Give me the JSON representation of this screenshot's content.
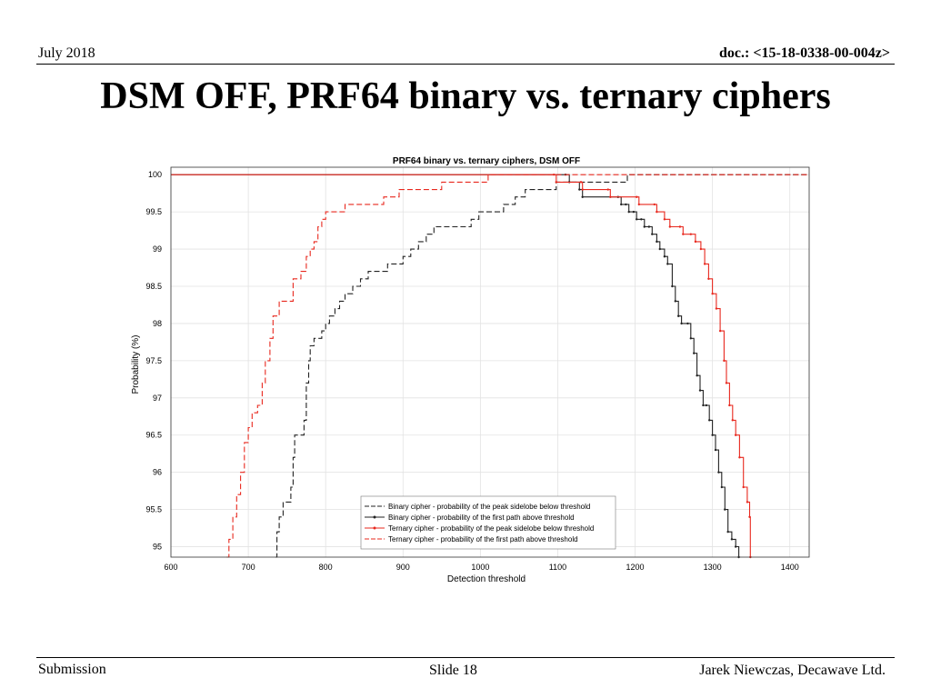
{
  "header": {
    "date": "July 2018",
    "doc": "doc.: <15-18-0338-00-004z>"
  },
  "slide_title": "DSM OFF, PRF64 binary vs. ternary ciphers",
  "footer": {
    "left": "Submission",
    "center": "Slide 18",
    "right": "Jarek Niewczas,  Decawave Ltd."
  },
  "colors": {
    "binary": "#222222",
    "ternary": "#e8281e",
    "grid": "#e2e2e2",
    "axis": "#333333"
  },
  "chart_data": {
    "type": "line",
    "title": "PRF64 binary vs. ternary ciphers, DSM OFF",
    "xlabel": "Detection threshold",
    "ylabel": "Probability (%)",
    "xlim": [
      600,
      1425
    ],
    "ylim": [
      94.86,
      100.1
    ],
    "xticks": [
      600,
      700,
      800,
      900,
      1000,
      1100,
      1200,
      1300,
      1400
    ],
    "yticks": [
      95,
      95.5,
      96,
      96.5,
      97,
      97.5,
      98,
      98.5,
      99,
      99.5,
      100
    ],
    "grid": true,
    "legend_position": "bottom-center",
    "series": [
      {
        "name": "Binary cipher - probability of the peak sidelobe below threshold",
        "color": "#222222",
        "dash": true,
        "markers": false,
        "points": [
          [
            735,
            94.86
          ],
          [
            737,
            95.2
          ],
          [
            740,
            95.4
          ],
          [
            745,
            95.6
          ],
          [
            752,
            95.6
          ],
          [
            755,
            95.8
          ],
          [
            758,
            96.2
          ],
          [
            760,
            96.5
          ],
          [
            768,
            96.5
          ],
          [
            772,
            96.7
          ],
          [
            775,
            97.2
          ],
          [
            778,
            97.5
          ],
          [
            780,
            97.7
          ],
          [
            785,
            97.8
          ],
          [
            792,
            97.8
          ],
          [
            795,
            97.9
          ],
          [
            800,
            98.0
          ],
          [
            805,
            98.1
          ],
          [
            812,
            98.2
          ],
          [
            818,
            98.3
          ],
          [
            825,
            98.4
          ],
          [
            835,
            98.5
          ],
          [
            845,
            98.6
          ],
          [
            855,
            98.7
          ],
          [
            870,
            98.7
          ],
          [
            880,
            98.8
          ],
          [
            895,
            98.8
          ],
          [
            900,
            98.9
          ],
          [
            910,
            99.0
          ],
          [
            920,
            99.1
          ],
          [
            930,
            99.2
          ],
          [
            940,
            99.3
          ],
          [
            980,
            99.3
          ],
          [
            988,
            99.4
          ],
          [
            995,
            99.4
          ],
          [
            998,
            99.5
          ],
          [
            1025,
            99.5
          ],
          [
            1030,
            99.6
          ],
          [
            1045,
            99.7
          ],
          [
            1058,
            99.8
          ],
          [
            1092,
            99.8
          ],
          [
            1098,
            99.9
          ],
          [
            1145,
            99.9
          ],
          [
            1155,
            99.9
          ],
          [
            1188,
            99.9
          ],
          [
            1190,
            100
          ],
          [
            1425,
            100
          ]
        ]
      },
      {
        "name": "Binary cipher - probability of the first path above threshold",
        "color": "#222222",
        "dash": false,
        "markers": true,
        "points": [
          [
            600,
            100
          ],
          [
            1110,
            100
          ],
          [
            1115,
            99.9
          ],
          [
            1128,
            99.8
          ],
          [
            1132,
            99.7
          ],
          [
            1178,
            99.7
          ],
          [
            1182,
            99.6
          ],
          [
            1188,
            99.6
          ],
          [
            1192,
            99.5
          ],
          [
            1198,
            99.5
          ],
          [
            1202,
            99.4
          ],
          [
            1208,
            99.4
          ],
          [
            1212,
            99.3
          ],
          [
            1218,
            99.3
          ],
          [
            1222,
            99.2
          ],
          [
            1228,
            99.1
          ],
          [
            1232,
            99.0
          ],
          [
            1238,
            98.9
          ],
          [
            1242,
            98.8
          ],
          [
            1248,
            98.5
          ],
          [
            1252,
            98.3
          ],
          [
            1256,
            98.1
          ],
          [
            1260,
            98.0
          ],
          [
            1268,
            98.0
          ],
          [
            1272,
            97.8
          ],
          [
            1276,
            97.6
          ],
          [
            1280,
            97.3
          ],
          [
            1284,
            97.1
          ],
          [
            1288,
            96.9
          ],
          [
            1292,
            96.9
          ],
          [
            1296,
            96.7
          ],
          [
            1300,
            96.5
          ],
          [
            1304,
            96.3
          ],
          [
            1308,
            96.0
          ],
          [
            1312,
            95.8
          ],
          [
            1316,
            95.5
          ],
          [
            1320,
            95.2
          ],
          [
            1325,
            95.1
          ],
          [
            1330,
            95.0
          ],
          [
            1334,
            94.86
          ]
        ]
      },
      {
        "name": "Ternary cipher - probability of the peak sidelobe below threshold",
        "color": "#e8281e",
        "dash": false,
        "markers": true,
        "points": [
          [
            600,
            100
          ],
          [
            1095,
            100
          ],
          [
            1098,
            99.9
          ],
          [
            1130,
            99.9
          ],
          [
            1132,
            99.8
          ],
          [
            1165,
            99.8
          ],
          [
            1168,
            99.7
          ],
          [
            1202,
            99.7
          ],
          [
            1205,
            99.6
          ],
          [
            1225,
            99.6
          ],
          [
            1228,
            99.5
          ],
          [
            1238,
            99.4
          ],
          [
            1245,
            99.3
          ],
          [
            1258,
            99.3
          ],
          [
            1262,
            99.2
          ],
          [
            1272,
            99.2
          ],
          [
            1278,
            99.1
          ],
          [
            1285,
            99.0
          ],
          [
            1290,
            98.8
          ],
          [
            1295,
            98.6
          ],
          [
            1300,
            98.4
          ],
          [
            1305,
            98.2
          ],
          [
            1310,
            97.9
          ],
          [
            1315,
            97.5
          ],
          [
            1318,
            97.2
          ],
          [
            1322,
            96.9
          ],
          [
            1326,
            96.7
          ],
          [
            1330,
            96.5
          ],
          [
            1335,
            96.2
          ],
          [
            1340,
            95.8
          ],
          [
            1345,
            95.6
          ],
          [
            1348,
            95.4
          ],
          [
            1349,
            94.86
          ]
        ]
      },
      {
        "name": "Ternary cipher - probability of the first path above threshold",
        "color": "#e8281e",
        "dash": true,
        "markers": false,
        "points": [
          [
            672,
            94.86
          ],
          [
            675,
            95.1
          ],
          [
            680,
            95.4
          ],
          [
            685,
            95.7
          ],
          [
            690,
            96.0
          ],
          [
            695,
            96.4
          ],
          [
            700,
            96.6
          ],
          [
            705,
            96.8
          ],
          [
            712,
            96.9
          ],
          [
            718,
            97.2
          ],
          [
            722,
            97.5
          ],
          [
            728,
            97.8
          ],
          [
            732,
            98.1
          ],
          [
            740,
            98.3
          ],
          [
            752,
            98.3
          ],
          [
            758,
            98.6
          ],
          [
            768,
            98.7
          ],
          [
            775,
            98.9
          ],
          [
            780,
            99.0
          ],
          [
            785,
            99.1
          ],
          [
            790,
            99.3
          ],
          [
            795,
            99.4
          ],
          [
            800,
            99.5
          ],
          [
            815,
            99.5
          ],
          [
            825,
            99.6
          ],
          [
            870,
            99.6
          ],
          [
            875,
            99.7
          ],
          [
            890,
            99.7
          ],
          [
            895,
            99.8
          ],
          [
            940,
            99.8
          ],
          [
            950,
            99.9
          ],
          [
            1000,
            99.9
          ],
          [
            1010,
            100
          ],
          [
            1425,
            100
          ]
        ]
      }
    ]
  }
}
